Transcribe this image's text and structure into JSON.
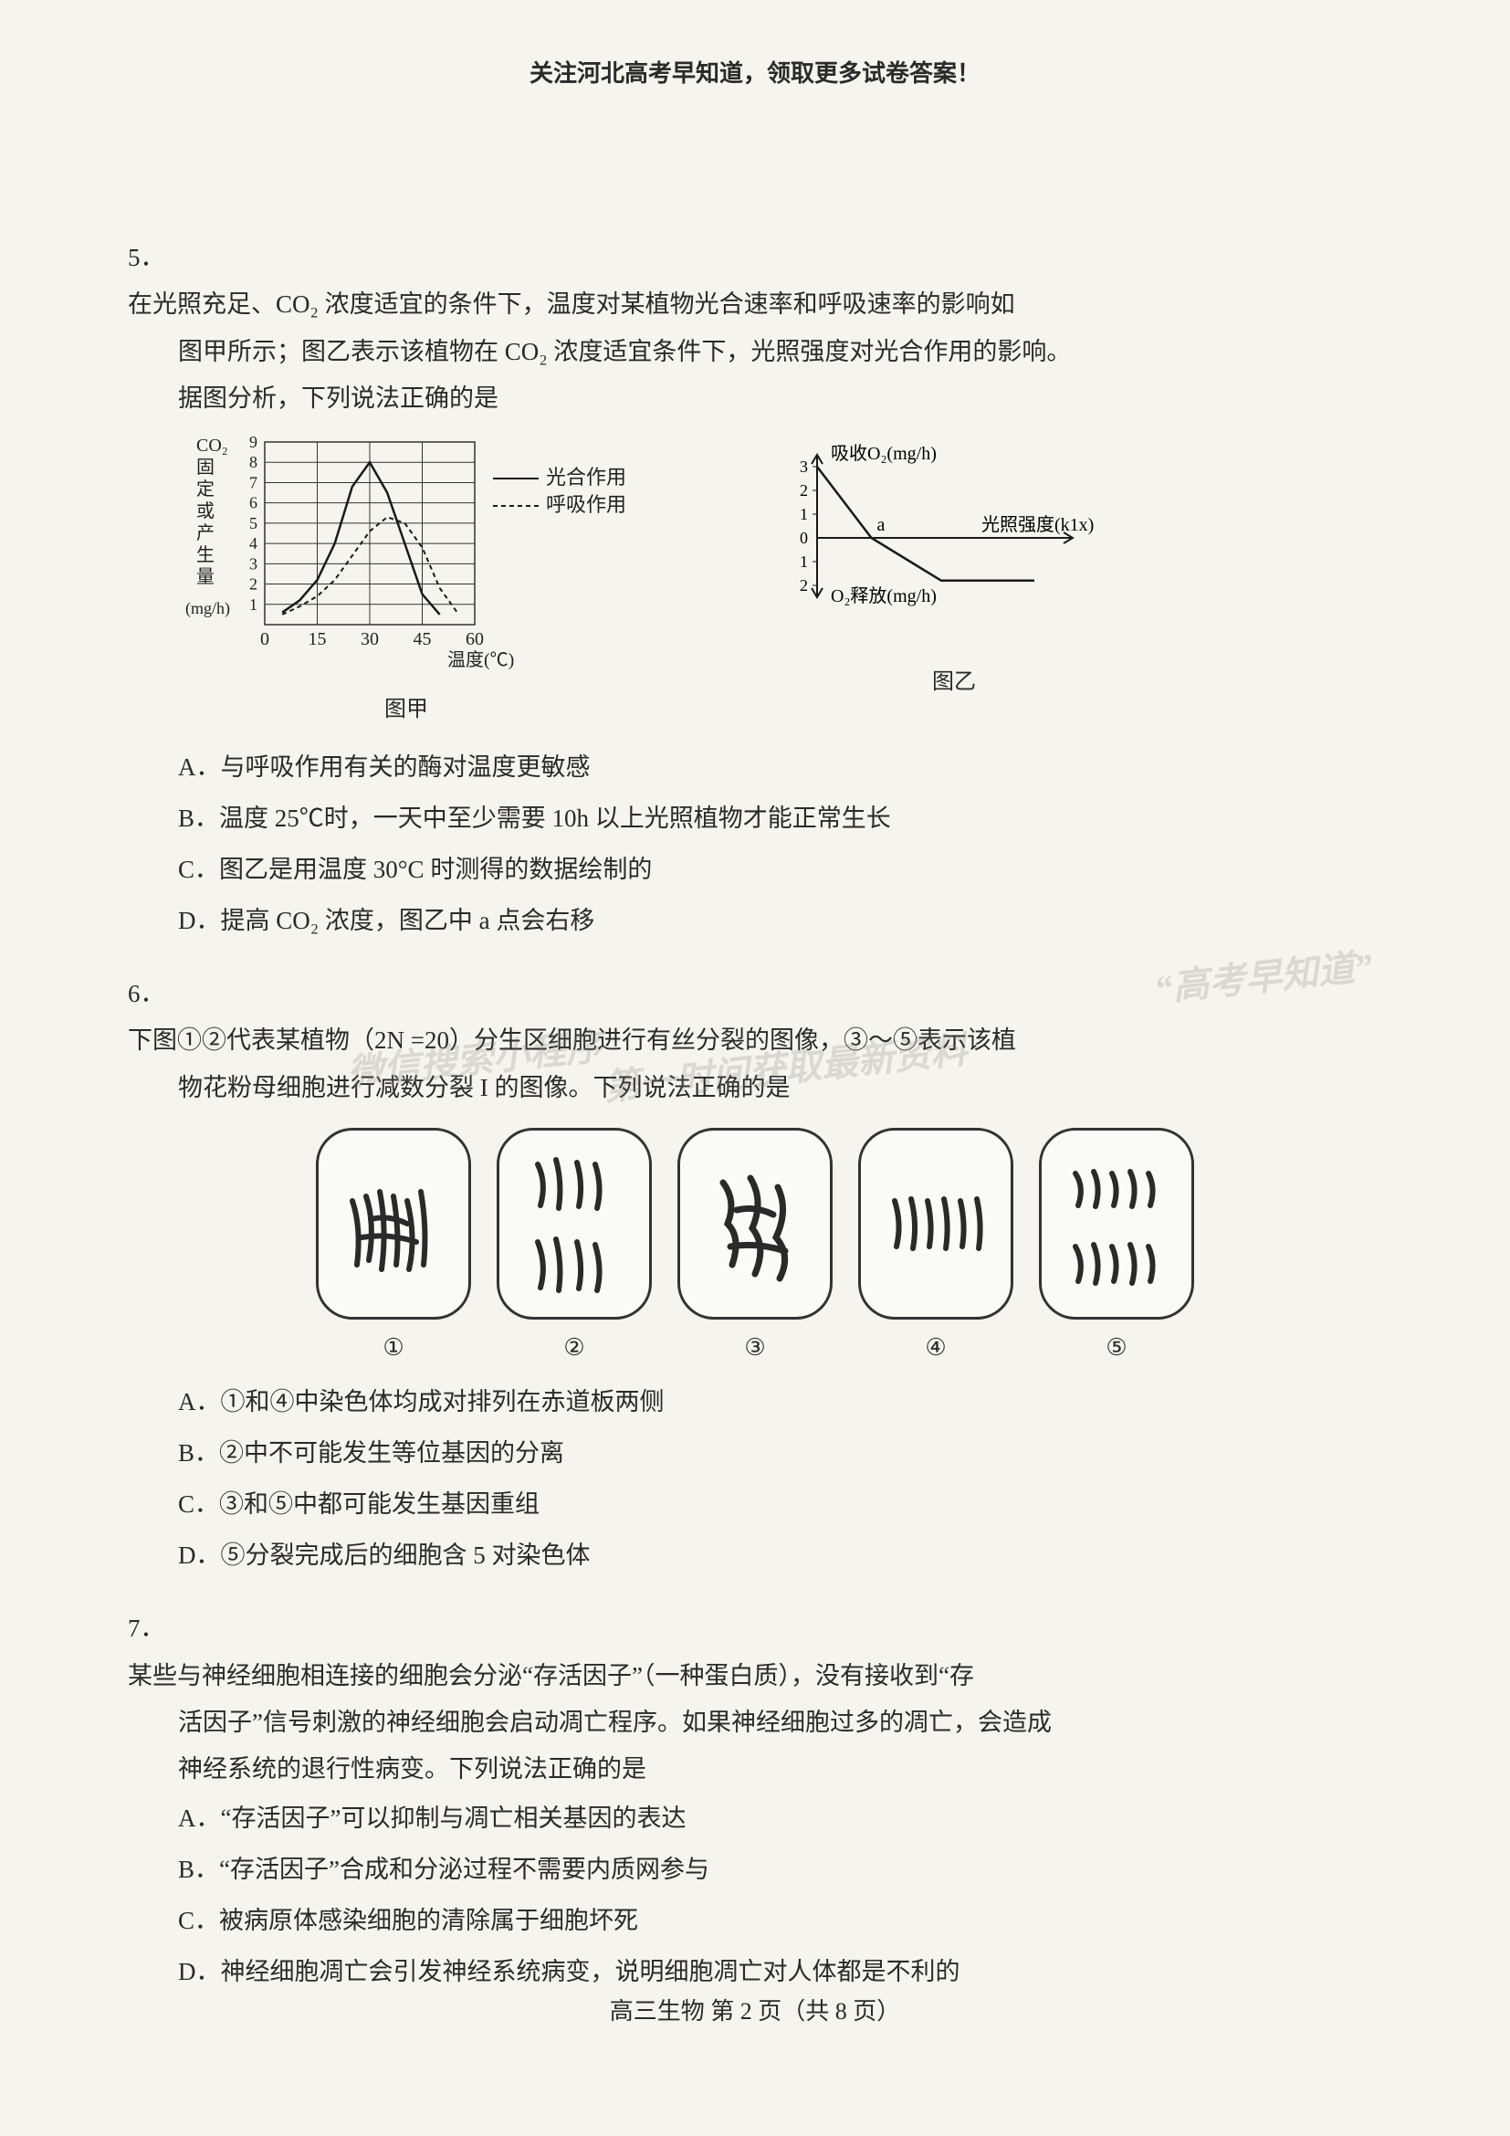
{
  "header": {
    "banner": "关注河北高考早知道，领取更多试卷答案！"
  },
  "questions": {
    "q5": {
      "number": "5．",
      "stem_line1": "在光照充足、CO₂ 浓度适宜的条件下，温度对某植物光合速率和呼吸速率的影响如",
      "stem_line2": "图甲所示；图乙表示该植物在 CO₂ 浓度适宜条件下，光照强度对光合作用的影响。",
      "stem_line3": "据图分析，下列说法正确的是",
      "chart_jia": {
        "type": "line",
        "y_axis_label_lines": [
          "CO₂",
          "固",
          "定",
          "或",
          "产",
          "生",
          "量"
        ],
        "y_unit": "(mg/h)",
        "x_label": "温度(℃)",
        "caption": "图甲",
        "xlim": [
          0,
          60
        ],
        "x_ticks": [
          0,
          15,
          30,
          45,
          60
        ],
        "ylim": [
          0,
          9
        ],
        "y_ticks": [
          1,
          2,
          3,
          4,
          5,
          6,
          7,
          8,
          9
        ],
        "grid_color": "#333333",
        "background_color": "#f5f4ee",
        "series": [
          {
            "name": "光合作用",
            "dash": "solid",
            "stroke": "#1a1a1a",
            "stroke_width": 2.5,
            "points": [
              [
                5,
                0.6
              ],
              [
                10,
                1.2
              ],
              [
                15,
                2.2
              ],
              [
                20,
                4.0
              ],
              [
                25,
                6.8
              ],
              [
                30,
                8.0
              ],
              [
                35,
                6.5
              ],
              [
                40,
                4.0
              ],
              [
                45,
                1.5
              ],
              [
                50,
                0.5
              ]
            ]
          },
          {
            "name": "呼吸作用",
            "dash": "5,4",
            "stroke": "#1a1a1a",
            "stroke_width": 2,
            "points": [
              [
                5,
                0.5
              ],
              [
                10,
                0.9
              ],
              [
                15,
                1.4
              ],
              [
                20,
                2.2
              ],
              [
                25,
                3.4
              ],
              [
                30,
                4.6
              ],
              [
                35,
                5.3
              ],
              [
                40,
                5.0
              ],
              [
                45,
                3.8
              ],
              [
                50,
                1.8
              ],
              [
                55,
                0.6
              ]
            ]
          }
        ],
        "legend": {
          "items": [
            "光合作用",
            "呼吸作用"
          ],
          "fontsize": 22
        }
      },
      "chart_yi": {
        "type": "line",
        "caption": "图乙",
        "y_top_label": "吸收O₂(mg/h)",
        "y_bottom_label": "O₂释放(mg/h)",
        "x_label": "光照强度(k1x)",
        "y_ticks_pos": [
          1,
          2,
          3
        ],
        "y_ticks_neg": [
          -1,
          -2
        ],
        "point_a_label": "a",
        "stroke": "#1a1a1a",
        "stroke_width": 2.5,
        "line_points": [
          [
            0,
            3
          ],
          [
            35,
            0
          ],
          [
            80,
            -1.8
          ],
          [
            140,
            -1.8
          ]
        ]
      },
      "options": {
        "A": "A．与呼吸作用有关的酶对温度更敏感",
        "B": "B．温度 25℃时，一天中至少需要 10h 以上光照植物才能正常生长",
        "C": "C．图乙是用温度 30°C 时测得的数据绘制的",
        "D": "D．提高 CO₂ 浓度，图乙中 a 点会右移"
      }
    },
    "q6": {
      "number": "6．",
      "stem_line1": "下图①②代表某植物（2N =20）分生区细胞进行有丝分裂的图像，③～⑤表示该植",
      "stem_line2": "物花粉母细胞进行减数分裂 I 的图像。下列说法正确的是",
      "cell_labels": [
        "①",
        "②",
        "③",
        "④",
        "⑤"
      ],
      "cell_colors": {
        "frame_border": "#333333",
        "chromosome": "#2a2a2a",
        "bg": "#fafaf6"
      },
      "options": {
        "A": "A．①和④中染色体均成对排列在赤道板两侧",
        "B": "B．②中不可能发生等位基因的分离",
        "C": "C．③和⑤中都可能发生基因重组",
        "D": "D．⑤分裂完成后的细胞含 5 对染色体"
      }
    },
    "q7": {
      "number": "7．",
      "stem_line1": "某些与神经细胞相连接的细胞会分泌“存活因子”（一种蛋白质），没有接收到“存",
      "stem_line2": "活因子”信号刺激的神经细胞会启动凋亡程序。如果神经细胞过多的凋亡，会造成",
      "stem_line3": "神经系统的退行性病变。下列说法正确的是",
      "options": {
        "A": "A．“存活因子”可以抑制与凋亡相关基因的表达",
        "B": "B．“存活因子”合成和分泌过程不需要内质网参与",
        "C": "C．被病原体感染细胞的清除属于细胞坏死",
        "D": "D．神经细胞凋亡会引发神经系统病变，说明细胞凋亡对人体都是不利的"
      }
    }
  },
  "watermarks": {
    "line1": "“高考早知道”",
    "line2": "微信搜索小程序",
    "line3": "第一时间获取最新资料"
  },
  "footer": {
    "text": "高三生物 第 2 页（共 8 页）"
  }
}
